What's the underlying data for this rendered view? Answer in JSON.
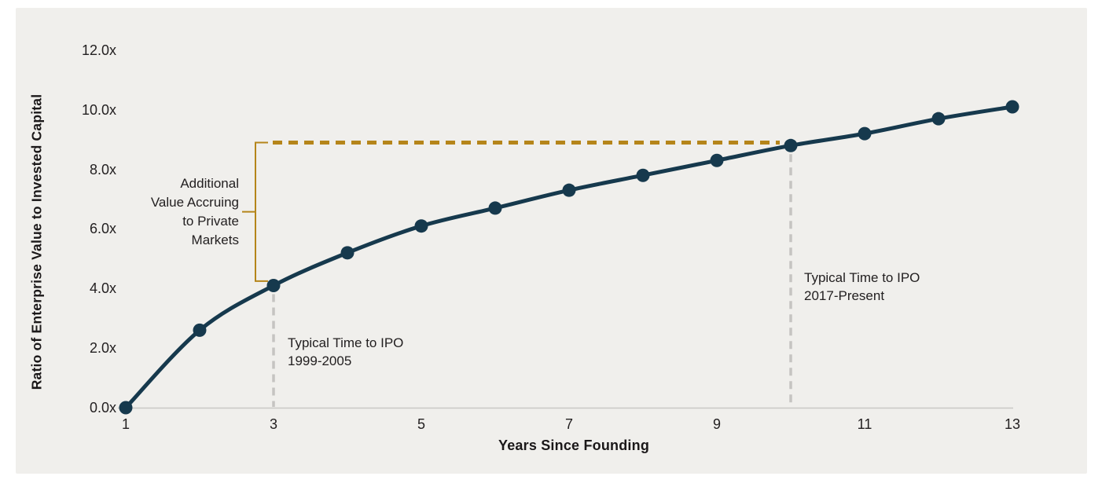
{
  "figure": {
    "background_color": "#ffffff",
    "panel_color": "#f0efec"
  },
  "chart_data": {
    "type": "line",
    "title": "",
    "xlabel": "Years Since Founding",
    "ylabel": "Ratio of Enterprise Value to Invested Capital",
    "x": [
      1,
      2,
      3,
      4,
      5,
      6,
      7,
      8,
      9,
      10,
      11,
      12,
      13
    ],
    "series": [
      {
        "name": "Enterprise Value to Invested Capital",
        "values": [
          0.0,
          2.6,
          4.1,
          5.2,
          6.1,
          6.7,
          7.3,
          7.8,
          8.3,
          8.8,
          9.2,
          9.7,
          10.1
        ]
      }
    ],
    "xlim": [
      1,
      13
    ],
    "ylim": [
      0,
      12.6
    ],
    "grid": false,
    "legend": "none",
    "xticks": {
      "values": [
        1,
        3,
        5,
        7,
        9,
        11,
        13
      ],
      "labels": [
        "1",
        "3",
        "5",
        "7",
        "9",
        "11",
        "13"
      ]
    },
    "yticks": {
      "values": [
        0,
        2,
        4,
        6,
        8,
        10,
        12
      ],
      "labels": [
        "0.0x",
        "2.0x",
        "4.0x",
        "6.0x",
        "8.0x",
        "10.0x",
        "12.0x"
      ]
    },
    "markers": [
      {
        "year": 3,
        "label": "Typical Time to IPO\n1999-2005"
      },
      {
        "year": 10,
        "label": "Typical Time to IPO\n2017-Present"
      }
    ],
    "reference_line": {
      "value": 8.9,
      "from_year": 3,
      "to_year": 10,
      "style": "dashed"
    },
    "bracket": {
      "at_year": 3,
      "from_value": 4.25,
      "to_value": 8.9,
      "label": "Additional\nValue Accruing\nto Private\nMarkets"
    },
    "colors": {
      "line": "#16394d",
      "marker_dash": "#c5c4c1",
      "accent_gold": "#b5851a",
      "axis": "#c9c8c5",
      "text": "#232021",
      "panel": "#f0efec"
    }
  }
}
